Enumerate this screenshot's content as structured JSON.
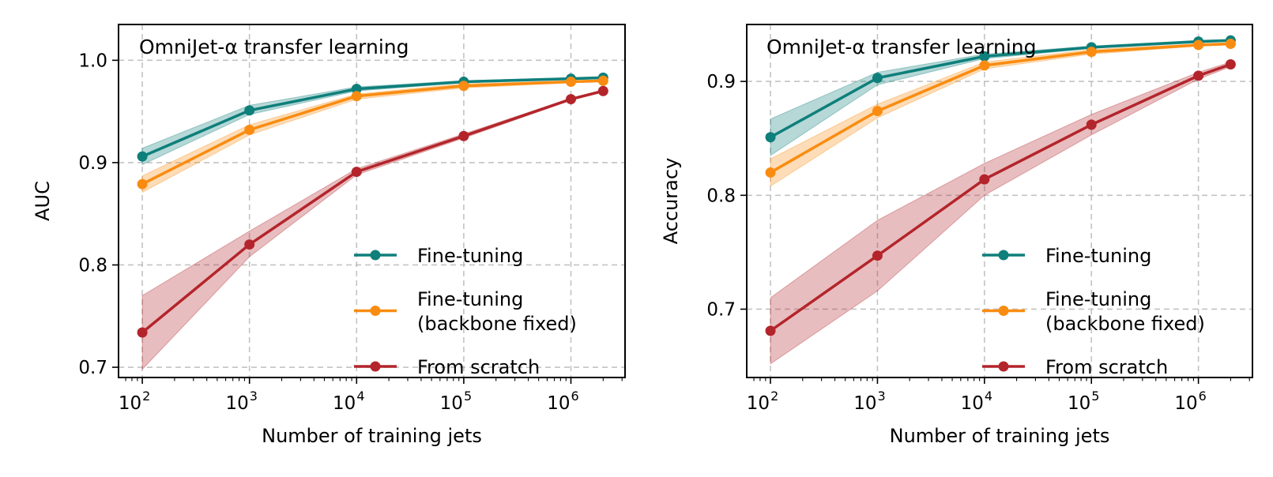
{
  "chart_data": [
    {
      "type": "line",
      "title": "OmniJet-α transfer learning",
      "xlabel": "Number of training jets",
      "ylabel": "AUC",
      "xscale": "log",
      "xlim": [
        60,
        3200000
      ],
      "ylim": [
        0.69,
        1.035
      ],
      "grid": true,
      "legend_position": "lower right",
      "x_ticks": [
        {
          "base": "10",
          "exp": "2",
          "value": 100
        },
        {
          "base": "10",
          "exp": "3",
          "value": 1000
        },
        {
          "base": "10",
          "exp": "4",
          "value": 10000
        },
        {
          "base": "10",
          "exp": "5",
          "value": 100000
        },
        {
          "base": "10",
          "exp": "6",
          "value": 1000000
        }
      ],
      "y_ticks": [
        {
          "label": "0.7",
          "value": 0.7
        },
        {
          "label": "0.8",
          "value": 0.8
        },
        {
          "label": "0.9",
          "value": 0.9
        },
        {
          "label": "1.0",
          "value": 1.0
        }
      ],
      "x": [
        100,
        1000,
        10000,
        100000,
        1000000,
        2000000
      ],
      "series": [
        {
          "name": "Fine-tuning",
          "name_lines": [
            "Fine-tuning"
          ],
          "color": "#0e7f7b",
          "values": [
            0.906,
            0.951,
            0.972,
            0.979,
            0.982,
            0.983
          ],
          "lower": [
            0.898,
            0.947,
            0.97,
            0.978,
            0.981,
            0.982
          ],
          "upper": [
            0.914,
            0.956,
            0.974,
            0.98,
            0.983,
            0.984
          ]
        },
        {
          "name": "Fine-tuning (backbone fixed)",
          "name_lines": [
            "Fine-tuning",
            "(backbone fixed)"
          ],
          "color": "#f98c10",
          "values": [
            0.879,
            0.932,
            0.965,
            0.975,
            0.979,
            0.98
          ],
          "lower": [
            0.871,
            0.927,
            0.962,
            0.973,
            0.978,
            0.979
          ],
          "upper": [
            0.887,
            0.937,
            0.967,
            0.977,
            0.98,
            0.981
          ]
        },
        {
          "name": "From scratch",
          "name_lines": [
            "From scratch"
          ],
          "color": "#b3252b",
          "values": [
            0.734,
            0.82,
            0.891,
            0.926,
            0.962,
            0.97
          ],
          "lower": [
            0.698,
            0.808,
            0.888,
            0.924,
            0.961,
            0.969
          ],
          "upper": [
            0.77,
            0.833,
            0.894,
            0.928,
            0.963,
            0.971
          ]
        }
      ]
    },
    {
      "type": "line",
      "title": "OmniJet-α transfer learning",
      "xlabel": "Number of training jets",
      "ylabel": "Accuracy",
      "xscale": "log",
      "xlim": [
        60,
        3200000
      ],
      "ylim": [
        0.64,
        0.95
      ],
      "grid": true,
      "legend_position": "lower right",
      "x_ticks": [
        {
          "base": "10",
          "exp": "2",
          "value": 100
        },
        {
          "base": "10",
          "exp": "3",
          "value": 1000
        },
        {
          "base": "10",
          "exp": "4",
          "value": 10000
        },
        {
          "base": "10",
          "exp": "5",
          "value": 100000
        },
        {
          "base": "10",
          "exp": "6",
          "value": 1000000
        }
      ],
      "y_ticks": [
        {
          "label": "0.7",
          "value": 0.7
        },
        {
          "label": "0.8",
          "value": 0.8
        },
        {
          "label": "0.9",
          "value": 0.9
        }
      ],
      "x": [
        100,
        1000,
        10000,
        100000,
        1000000,
        2000000
      ],
      "series": [
        {
          "name": "Fine-tuning",
          "name_lines": [
            "Fine-tuning"
          ],
          "color": "#0e7f7b",
          "values": [
            0.851,
            0.903,
            0.922,
            0.93,
            0.935,
            0.936
          ],
          "lower": [
            0.835,
            0.897,
            0.92,
            0.929,
            0.934,
            0.935
          ],
          "upper": [
            0.867,
            0.908,
            0.924,
            0.931,
            0.936,
            0.937
          ]
        },
        {
          "name": "Fine-tuning (backbone fixed)",
          "name_lines": [
            "Fine-tuning",
            "(backbone fixed)"
          ],
          "color": "#f98c10",
          "values": [
            0.82,
            0.874,
            0.914,
            0.926,
            0.932,
            0.933
          ],
          "lower": [
            0.808,
            0.868,
            0.911,
            0.924,
            0.931,
            0.932
          ],
          "upper": [
            0.832,
            0.88,
            0.917,
            0.928,
            0.933,
            0.934
          ]
        },
        {
          "name": "From scratch",
          "name_lines": [
            "From scratch"
          ],
          "color": "#b3252b",
          "values": [
            0.681,
            0.747,
            0.814,
            0.862,
            0.905,
            0.915
          ],
          "lower": [
            0.652,
            0.716,
            0.8,
            0.853,
            0.902,
            0.913
          ],
          "upper": [
            0.71,
            0.778,
            0.828,
            0.871,
            0.908,
            0.917
          ]
        }
      ]
    }
  ]
}
